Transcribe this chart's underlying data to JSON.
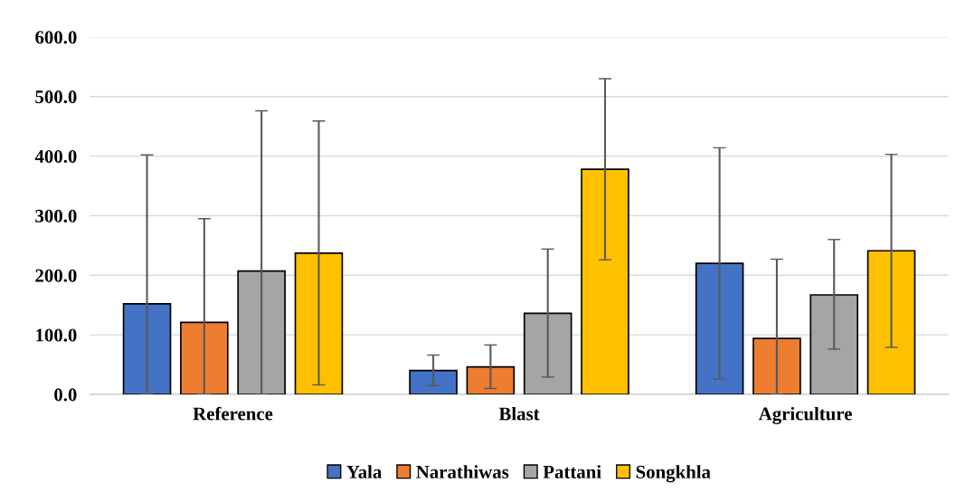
{
  "chart_data": {
    "type": "bar",
    "categories": [
      "Reference",
      "Blast",
      "Agriculture"
    ],
    "series": [
      {
        "name": "Yala",
        "color": "#4472c4",
        "values": [
          152,
          40,
          220
        ],
        "errors": [
          [
            0,
            402
          ],
          [
            15,
            66
          ],
          [
            26,
            414
          ]
        ]
      },
      {
        "name": "Narathiwas",
        "color": "#ed7d31",
        "values": [
          121,
          46,
          94
        ],
        "errors": [
          [
            0,
            295
          ],
          [
            10,
            83
          ],
          [
            0,
            227
          ]
        ]
      },
      {
        "name": "Pattani",
        "color": "#a5a5a5",
        "values": [
          207,
          136,
          167
        ],
        "errors": [
          [
            0,
            476
          ],
          [
            29,
            244
          ],
          [
            76,
            260
          ]
        ]
      },
      {
        "name": "Songkhla",
        "color": "#ffc000",
        "values": [
          237,
          378,
          241
        ],
        "errors": [
          [
            16,
            459
          ],
          [
            226,
            530
          ],
          [
            79,
            403
          ]
        ]
      }
    ],
    "ylim": [
      0,
      600
    ],
    "yticks": [
      {
        "value": 0,
        "label": "0.0"
      },
      {
        "value": 100,
        "label": "100.0"
      },
      {
        "value": 200,
        "label": "200.0"
      },
      {
        "value": 300,
        "label": "300.0"
      },
      {
        "value": 400,
        "label": "400.0"
      },
      {
        "value": 500,
        "label": "500.0"
      },
      {
        "value": 600,
        "label": "600.0"
      }
    ],
    "grid": "y",
    "legend": "bottom"
  }
}
